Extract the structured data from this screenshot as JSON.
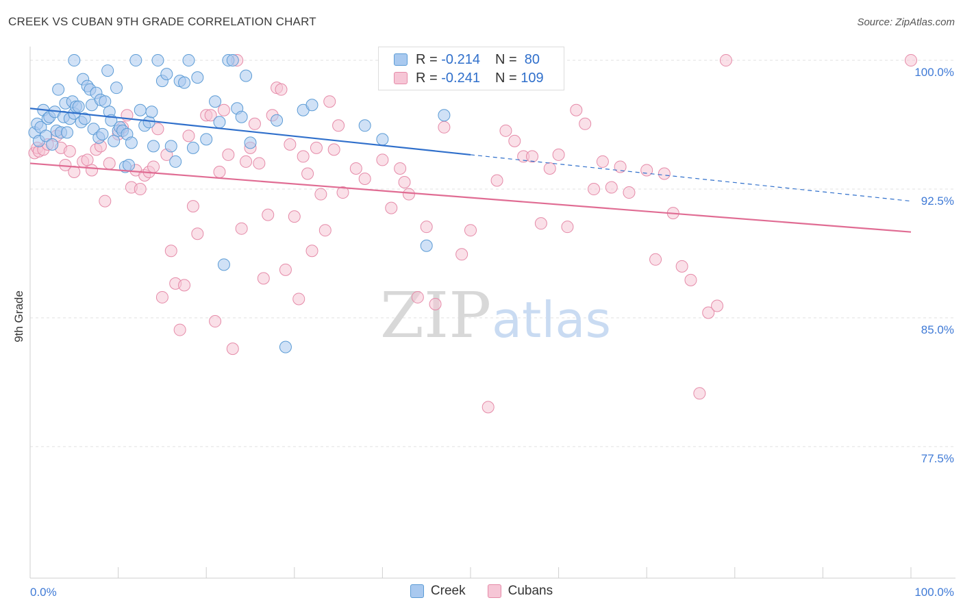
{
  "title": "CREEK VS CUBAN 9TH GRADE CORRELATION CHART",
  "source": "Source: ZipAtlas.com",
  "watermark": {
    "zip": "ZIP",
    "atlas": "atlas"
  },
  "colors": {
    "creek": "#5b9bd5",
    "creek_fill": "#a9c9ef",
    "creek_line": "#2f6fcb",
    "cubans": "#e58aa8",
    "cubans_fill": "#f6c6d6",
    "cubans_line": "#e06c93",
    "axis_label": "#3f7ad6",
    "grid": "#e0e0e0"
  },
  "legend": {
    "rows": [
      {
        "r_label": "R = ",
        "r_value": "-0.214",
        "n_label": "N = ",
        "n_value": " 80"
      },
      {
        "r_label": "R = ",
        "r_value": "-0.241",
        "n_label": "N = ",
        "n_value": "109"
      }
    ]
  },
  "chart_data": {
    "type": "scatter",
    "xlabel": "",
    "ylabel": "9th Grade",
    "xlim": [
      0,
      100
    ],
    "ylim": [
      70,
      100.8
    ],
    "x_tick_labels": [
      "0.0%",
      "100.0%"
    ],
    "y_ticks": [
      77.5,
      85.0,
      92.5,
      100.0
    ],
    "y_tick_labels": [
      "77.5%",
      "85.0%",
      "92.5%",
      "100.0%"
    ],
    "grid": true,
    "legend_position": "top-center",
    "series": [
      {
        "name": "Creek",
        "trend": {
          "x": [
            0,
            50
          ],
          "y": [
            97.2,
            94.5
          ],
          "dashed_to": [
            100,
            91.8
          ]
        },
        "points": [
          [
            0.5,
            95.8
          ],
          [
            0.8,
            96.3
          ],
          [
            1.0,
            95.3
          ],
          [
            1.2,
            96.1
          ],
          [
            1.5,
            97.1
          ],
          [
            1.8,
            95.6
          ],
          [
            2.0,
            96.6
          ],
          [
            2.2,
            96.7
          ],
          [
            2.5,
            95.1
          ],
          [
            2.8,
            97.0
          ],
          [
            3.0,
            95.9
          ],
          [
            3.2,
            98.3
          ],
          [
            3.5,
            95.8
          ],
          [
            3.8,
            96.7
          ],
          [
            4.0,
            97.5
          ],
          [
            4.2,
            95.8
          ],
          [
            4.5,
            96.6
          ],
          [
            4.8,
            97.6
          ],
          [
            5.0,
            96.9
          ],
          [
            5.2,
            97.3
          ],
          [
            5.5,
            97.3
          ],
          [
            5.8,
            96.4
          ],
          [
            6.0,
            98.9
          ],
          [
            6.2,
            96.6
          ],
          [
            6.5,
            98.5
          ],
          [
            6.8,
            98.3
          ],
          [
            7.0,
            97.4
          ],
          [
            7.2,
            96.0
          ],
          [
            7.5,
            98.1
          ],
          [
            7.8,
            95.5
          ],
          [
            8.0,
            97.7
          ],
          [
            8.2,
            95.7
          ],
          [
            8.5,
            97.6
          ],
          [
            8.8,
            99.4
          ],
          [
            9.0,
            97.0
          ],
          [
            9.2,
            96.5
          ],
          [
            9.5,
            95.3
          ],
          [
            9.8,
            98.4
          ],
          [
            10.0,
            95.9
          ],
          [
            10.2,
            96.1
          ],
          [
            10.5,
            95.9
          ],
          [
            10.8,
            93.8
          ],
          [
            11.0,
            95.7
          ],
          [
            11.2,
            93.9
          ],
          [
            11.5,
            95.2
          ],
          [
            12.0,
            100.0
          ],
          [
            12.5,
            97.1
          ],
          [
            13.0,
            96.2
          ],
          [
            13.5,
            96.4
          ],
          [
            14.0,
            95.0
          ],
          [
            14.5,
            100.0
          ],
          [
            15.0,
            98.8
          ],
          [
            15.5,
            99.2
          ],
          [
            16.0,
            95.0
          ],
          [
            16.5,
            94.1
          ],
          [
            17.0,
            98.8
          ],
          [
            17.5,
            98.7
          ],
          [
            18.0,
            100.0
          ],
          [
            18.5,
            94.9
          ],
          [
            19.0,
            99.0
          ],
          [
            20.0,
            95.4
          ],
          [
            21.0,
            97.6
          ],
          [
            21.5,
            96.4
          ],
          [
            22.0,
            88.1
          ],
          [
            22.5,
            100.0
          ],
          [
            23.0,
            100.0
          ],
          [
            23.5,
            97.2
          ],
          [
            24.0,
            96.7
          ],
          [
            24.5,
            99.1
          ],
          [
            25.0,
            95.2
          ],
          [
            28.0,
            96.5
          ],
          [
            29.0,
            83.3
          ],
          [
            31.0,
            97.1
          ],
          [
            32.0,
            97.4
          ],
          [
            38.0,
            96.2
          ],
          [
            40.0,
            95.4
          ],
          [
            45.0,
            89.2
          ],
          [
            47.0,
            96.8
          ],
          [
            5.0,
            100.0
          ],
          [
            13.8,
            97.0
          ]
        ]
      },
      {
        "name": "Cubans",
        "trend": {
          "x": [
            0,
            100
          ],
          "y": [
            94.0,
            90.0
          ]
        },
        "points": [
          [
            0.5,
            94.6
          ],
          [
            0.8,
            94.9
          ],
          [
            1.0,
            94.7
          ],
          [
            1.5,
            94.8
          ],
          [
            2.0,
            95.1
          ],
          [
            3.0,
            95.6
          ],
          [
            3.5,
            94.9
          ],
          [
            4.0,
            93.9
          ],
          [
            4.5,
            94.7
          ],
          [
            5.0,
            93.5
          ],
          [
            6.0,
            94.1
          ],
          [
            6.5,
            94.2
          ],
          [
            7.0,
            93.6
          ],
          [
            7.5,
            94.8
          ],
          [
            8.0,
            95.0
          ],
          [
            8.5,
            91.8
          ],
          [
            9.0,
            94.0
          ],
          [
            10.0,
            95.7
          ],
          [
            10.5,
            96.1
          ],
          [
            11.0,
            96.8
          ],
          [
            11.5,
            92.6
          ],
          [
            12.0,
            93.6
          ],
          [
            12.5,
            92.5
          ],
          [
            13.0,
            93.3
          ],
          [
            13.5,
            93.5
          ],
          [
            14.0,
            93.8
          ],
          [
            14.5,
            96.0
          ],
          [
            15.0,
            86.2
          ],
          [
            15.5,
            94.5
          ],
          [
            16.0,
            88.9
          ],
          [
            16.5,
            87.0
          ],
          [
            17.0,
            84.3
          ],
          [
            17.5,
            86.9
          ],
          [
            18.0,
            95.6
          ],
          [
            18.5,
            91.5
          ],
          [
            19.0,
            89.9
          ],
          [
            20.0,
            96.8
          ],
          [
            20.5,
            96.8
          ],
          [
            21.0,
            84.8
          ],
          [
            21.5,
            93.5
          ],
          [
            22.0,
            97.1
          ],
          [
            22.5,
            94.5
          ],
          [
            23.0,
            83.2
          ],
          [
            23.5,
            100.0
          ],
          [
            24.0,
            90.2
          ],
          [
            24.5,
            94.1
          ],
          [
            25.0,
            94.9
          ],
          [
            25.5,
            96.3
          ],
          [
            26.0,
            94.0
          ],
          [
            26.5,
            87.3
          ],
          [
            27.0,
            91.0
          ],
          [
            27.5,
            96.8
          ],
          [
            28.0,
            98.4
          ],
          [
            28.5,
            98.3
          ],
          [
            29.0,
            87.8
          ],
          [
            29.5,
            95.1
          ],
          [
            30.0,
            90.9
          ],
          [
            30.5,
            86.1
          ],
          [
            31.0,
            94.4
          ],
          [
            31.5,
            93.4
          ],
          [
            32.0,
            88.9
          ],
          [
            32.5,
            94.9
          ],
          [
            33.0,
            92.2
          ],
          [
            33.5,
            90.1
          ],
          [
            34.0,
            97.6
          ],
          [
            34.5,
            94.8
          ],
          [
            35.0,
            96.2
          ],
          [
            35.5,
            92.3
          ],
          [
            37.0,
            93.7
          ],
          [
            38.0,
            93.1
          ],
          [
            40.0,
            94.2
          ],
          [
            41.0,
            91.4
          ],
          [
            42.0,
            93.7
          ],
          [
            42.5,
            92.9
          ],
          [
            43.0,
            92.2
          ],
          [
            44.0,
            86.2
          ],
          [
            45.0,
            90.3
          ],
          [
            46.0,
            85.8
          ],
          [
            47.0,
            96.1
          ],
          [
            49.0,
            88.7
          ],
          [
            50.0,
            90.1
          ],
          [
            52.0,
            79.8
          ],
          [
            53.0,
            93.0
          ],
          [
            54.0,
            95.9
          ],
          [
            55.0,
            95.3
          ],
          [
            56.0,
            94.4
          ],
          [
            57.0,
            94.4
          ],
          [
            58.0,
            90.5
          ],
          [
            59.0,
            93.7
          ],
          [
            60.0,
            94.5
          ],
          [
            61.0,
            90.3
          ],
          [
            62.0,
            97.1
          ],
          [
            63.0,
            96.3
          ],
          [
            64.0,
            92.5
          ],
          [
            65.0,
            94.1
          ],
          [
            66.0,
            92.6
          ],
          [
            67.0,
            93.8
          ],
          [
            68.0,
            92.3
          ],
          [
            70.0,
            93.6
          ],
          [
            71.0,
            88.4
          ],
          [
            72.0,
            93.4
          ],
          [
            73.0,
            91.1
          ],
          [
            74.0,
            88.0
          ],
          [
            75.0,
            87.2
          ],
          [
            76.0,
            80.6
          ],
          [
            77.0,
            85.3
          ],
          [
            78.0,
            85.7
          ],
          [
            79.0,
            100.0
          ],
          [
            100.0,
            100.0
          ]
        ]
      }
    ]
  },
  "bottom_legend": [
    "Creek",
    "Cubans"
  ]
}
